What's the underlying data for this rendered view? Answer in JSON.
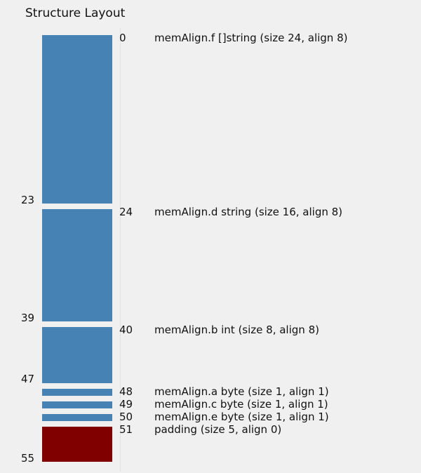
{
  "title": "Structure Layout",
  "colors": {
    "field": "#4682b4",
    "padding": "#800000",
    "background": "#f0f0f0",
    "text": "#111111"
  },
  "fields": [
    {
      "offset": 0,
      "end": 23,
      "size": 24,
      "label": "memAlign.f []string (size 24, align 8)",
      "kind": "field"
    },
    {
      "offset": 24,
      "end": 39,
      "size": 16,
      "label": "memAlign.d string (size 16, align 8)",
      "kind": "field"
    },
    {
      "offset": 40,
      "end": 47,
      "size": 8,
      "label": "memAlign.b int (size 8, align 8)",
      "kind": "field"
    },
    {
      "offset": 48,
      "end": 48,
      "size": 1,
      "label": "memAlign.a byte (size 1, align 1)",
      "kind": "field"
    },
    {
      "offset": 49,
      "end": 49,
      "size": 1,
      "label": "memAlign.c byte (size 1, align 1)",
      "kind": "field"
    },
    {
      "offset": 50,
      "end": 50,
      "size": 1,
      "label": "memAlign.e byte (size 1, align 1)",
      "kind": "field"
    },
    {
      "offset": 51,
      "end": 55,
      "size": 5,
      "label": "padding (size 5, align 0)",
      "kind": "padding"
    }
  ],
  "end_offsets": [
    "23",
    "39",
    "47",
    "55"
  ]
}
